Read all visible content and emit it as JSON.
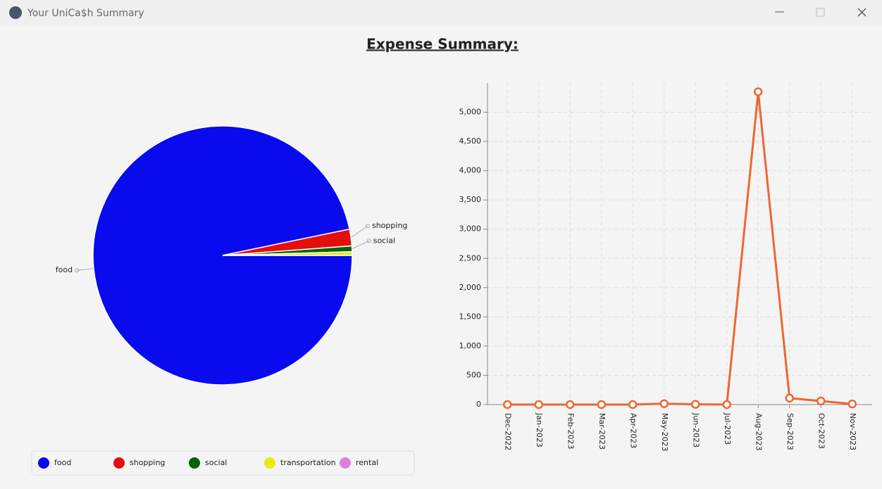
{
  "window": {
    "title": "Your UniCa$h Summary"
  },
  "heading": "Expense Summary:",
  "chart_data": [
    {
      "type": "pie",
      "categories": [
        "food",
        "shopping",
        "social",
        "transportation",
        "rental"
      ],
      "values": [
        5360,
        115,
        40,
        25,
        0
      ],
      "colors": [
        "#0a0aee",
        "#e60d0d",
        "#006400",
        "#eaea10",
        "#dd80dd"
      ],
      "legend": "bottom"
    },
    {
      "type": "line",
      "categories": [
        "Dec-2022",
        "Jan-2023",
        "Feb-2023",
        "Mar-2023",
        "Apr-2023",
        "May-2023",
        "Jun-2023",
        "Jul-2023",
        "Aug-2023",
        "Sep-2023",
        "Oct-2023",
        "Nov-2023"
      ],
      "series": [
        {
          "color": "#ee6633",
          "values": [
            0,
            0,
            0,
            0,
            0,
            15,
            5,
            0,
            5350,
            110,
            60,
            10
          ]
        }
      ],
      "ylim": [
        0,
        5500
      ],
      "yticks": [
        0,
        500,
        {
          "value": 1000,
          "label": "1,000"
        },
        {
          "value": 1500,
          "label": "1,500"
        },
        {
          "value": 2000,
          "label": "2,000"
        },
        {
          "value": 2500,
          "label": "2,500"
        },
        {
          "value": 3000,
          "label": "3,000"
        },
        {
          "value": 3500,
          "label": "3,500"
        },
        {
          "value": 4000,
          "label": "4,000"
        },
        {
          "value": 4500,
          "label": "4,500"
        },
        {
          "value": 5000,
          "label": "5,000"
        }
      ],
      "grid": true
    }
  ]
}
